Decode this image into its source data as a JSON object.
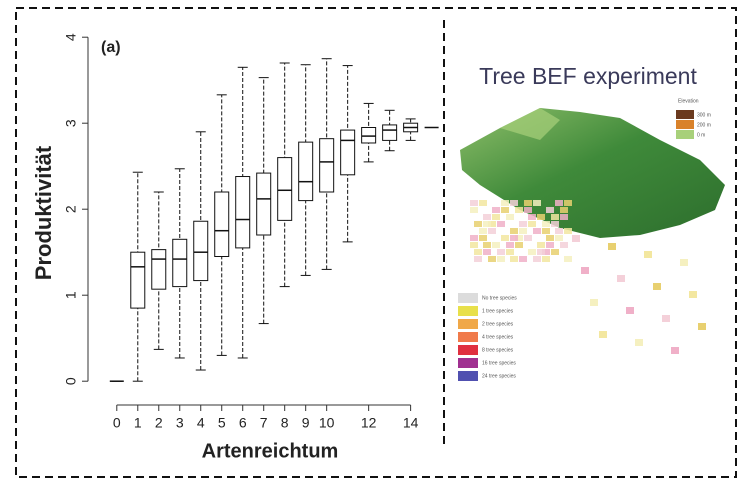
{
  "chart_data": {
    "type": "box",
    "annotation": "(a)",
    "x_label": "Artenreichtum",
    "y_label": "Produktivität",
    "x": [
      0,
      1,
      2,
      3,
      4,
      5,
      6,
      7,
      8,
      9,
      10,
      11,
      12,
      13,
      14,
      15
    ],
    "min": [
      0,
      0,
      0.37,
      0.27,
      0.13,
      0.3,
      0.27,
      0.67,
      1.1,
      1.23,
      1.3,
      1.62,
      2.55,
      2.68,
      2.8,
      2.95
    ],
    "q1": [
      0,
      0.85,
      1.07,
      1.1,
      1.17,
      1.45,
      1.55,
      1.7,
      1.87,
      2.1,
      2.2,
      2.4,
      2.77,
      2.8,
      2.9,
      2.95
    ],
    "median": [
      0,
      1.33,
      1.42,
      1.42,
      1.5,
      1.75,
      1.88,
      2.12,
      2.22,
      2.32,
      2.55,
      2.8,
      2.85,
      2.92,
      2.95,
      2.95
    ],
    "q3": [
      0,
      1.5,
      1.53,
      1.65,
      1.86,
      2.2,
      2.38,
      2.42,
      2.6,
      2.78,
      2.82,
      2.92,
      2.95,
      2.98,
      3.0,
      2.95
    ],
    "max": [
      0,
      2.43,
      2.2,
      2.47,
      2.9,
      3.33,
      3.65,
      3.53,
      3.7,
      3.68,
      3.75,
      3.67,
      3.23,
      3.15,
      3.05,
      2.95
    ],
    "color": "#111111",
    "xlim": [
      -0.8,
      15.4
    ],
    "xticks": [
      0,
      1,
      2,
      3,
      4,
      5,
      6,
      7,
      8,
      9,
      10,
      12,
      14
    ],
    "ylim": [
      -0.3,
      4.2
    ],
    "yticks": [
      0,
      1,
      2,
      3,
      4
    ]
  },
  "inset": {
    "title": "Tree BEF experiment",
    "elevation": {
      "title": "Elevation",
      "items": [
        {
          "label": "300 m",
          "color": "#6b3a1e"
        },
        {
          "label": "200 m",
          "color": "#d9822b"
        },
        {
          "label": "0 m",
          "color": "#a8d07a"
        }
      ]
    },
    "species_legend": [
      {
        "label": "No tree species",
        "color": "#dcdcdc"
      },
      {
        "label": "1 tree species",
        "color": "#e8e04a"
      },
      {
        "label": "2 tree species",
        "color": "#f0a848"
      },
      {
        "label": "4 tree species",
        "color": "#f07a4a"
      },
      {
        "label": "8 tree species",
        "color": "#e03040"
      },
      {
        "label": "16 tree species",
        "color": "#a03090"
      },
      {
        "label": "24 tree species",
        "color": "#5050b0"
      }
    ]
  }
}
